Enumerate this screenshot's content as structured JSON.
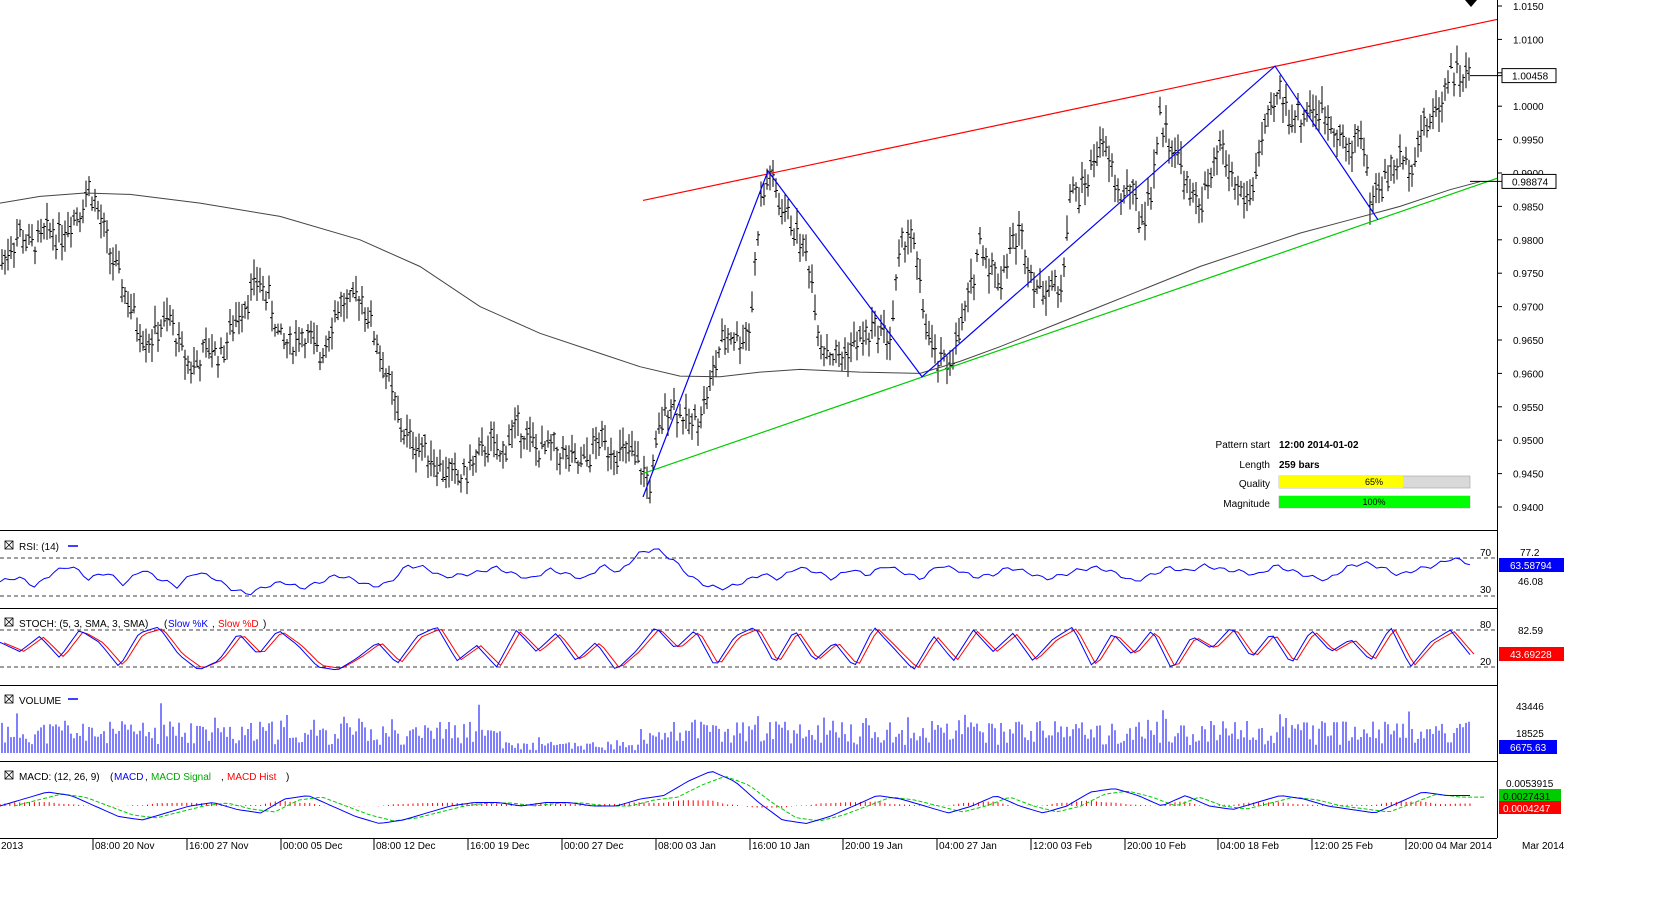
{
  "chart_data": [
    {
      "type": "candlestick",
      "panel": "price",
      "ylim": [
        0.938,
        1.015
      ],
      "y_ticks": [
        "1.0150",
        "1.0100",
        "1.0050",
        "1.0000",
        "0.9950",
        "0.9900",
        "0.9850",
        "0.9800",
        "0.9750",
        "0.9700",
        "0.9650",
        "0.9600",
        "0.9550",
        "0.9500",
        "0.9450",
        "0.9400"
      ],
      "series": [
        {
          "name": "Close",
          "x": [
            0,
            10,
            20,
            30,
            40,
            50,
            60,
            70,
            80,
            90,
            100,
            110,
            120,
            130,
            140,
            150,
            160,
            170,
            180,
            190,
            200,
            210,
            220,
            230,
            240,
            250,
            259,
            270,
            280,
            290,
            300,
            310,
            320,
            330,
            340,
            350,
            360,
            370,
            380,
            390,
            400,
            410,
            420,
            430,
            440,
            450,
            460,
            470,
            480,
            490,
            500,
            510,
            520,
            530,
            540,
            550,
            560,
            570,
            580,
            590,
            600,
            610,
            620,
            630,
            640,
            650,
            660,
            670,
            680,
            690,
            700,
            710,
            720,
            730,
            740,
            750,
            760,
            770,
            780,
            790,
            800,
            810,
            820,
            830,
            840,
            850,
            860,
            870,
            880,
            890,
            900,
            910,
            920,
            930,
            940,
            950,
            960,
            970,
            980,
            990,
            1000,
            1010,
            1020,
            1030,
            1040,
            1050,
            1060,
            1070,
            1080,
            1090,
            1100,
            1110,
            1120,
            1130,
            1140,
            1150,
            1160,
            1170,
            1180,
            1190,
            1200,
            1210,
            1220,
            1230,
            1240,
            1250,
            1260,
            1270,
            1280,
            1290,
            1300,
            1310,
            1320,
            1330,
            1340,
            1350,
            1360,
            1370,
            1380,
            1390,
            1400,
            1410,
            1420,
            1430,
            1440,
            1450,
            1460,
            1470
          ],
          "y": [
            0.976,
            0.979,
            0.981,
            0.979,
            0.98,
            0.9815,
            0.9805,
            0.983,
            0.9845,
            0.988,
            0.983,
            0.978,
            0.974,
            0.97,
            0.9665,
            0.965,
            0.967,
            0.968,
            0.964,
            0.961,
            0.962,
            0.964,
            0.9625,
            0.966,
            0.9695,
            0.972,
            0.974,
            0.9705,
            0.965,
            0.964,
            0.966,
            0.965,
            0.9625,
            0.967,
            0.9705,
            0.97,
            0.972,
            0.968,
            0.963,
            0.958,
            0.952,
            0.95,
            0.949,
            0.948,
            0.946,
            0.945,
            0.944,
            0.946,
            0.9475,
            0.95,
            0.947,
            0.951,
            0.952,
            0.95,
            0.948,
            0.949,
            0.948,
            0.947,
            0.946,
            0.948,
            0.95,
            0.949,
            0.948,
            0.948,
            0.946,
            0.943,
            0.952,
            0.956,
            0.954,
            0.952,
            0.954,
            0.958,
            0.964,
            0.966,
            0.965,
            0.967,
            0.985,
            0.99,
            0.985,
            0.983,
            0.98,
            0.976,
            0.965,
            0.963,
            0.962,
            0.964,
            0.965,
            0.966,
            0.967,
            0.965,
            0.978,
            0.982,
            0.973,
            0.964,
            0.961,
            0.962,
            0.966,
            0.972,
            0.98,
            0.976,
            0.974,
            0.979,
            0.981,
            0.976,
            0.972,
            0.974,
            0.971,
            0.987,
            0.987,
            0.99,
            0.995,
            0.991,
            0.986,
            0.988,
            0.983,
            0.986,
            0.998,
            0.995,
            0.992,
            0.986,
            0.986,
            0.988,
            0.994,
            0.99,
            0.987,
            0.986,
            0.994,
            0.998,
            1.002,
            0.999,
            0.998,
            1.0,
            0.999,
            0.998,
            0.996,
            0.992,
            0.998,
            0.986,
            0.988,
            0.99,
            0.992,
            0.991,
            0.996,
            0.998,
            1.0,
            1.006,
            1.0045,
            1.0046
          ]
        },
        {
          "name": "MA",
          "x": [
            0,
            40,
            85,
            130,
            200,
            280,
            360,
            420,
            480,
            540,
            600,
            640,
            680,
            720,
            760,
            800,
            860,
            920,
            960,
            1000,
            1050,
            1100,
            1150,
            1200,
            1250,
            1300,
            1350,
            1400,
            1450,
            1480
          ],
          "y": [
            0.9855,
            0.9865,
            0.987,
            0.9868,
            0.9855,
            0.9835,
            0.98,
            0.976,
            0.97,
            0.966,
            0.963,
            0.961,
            0.9596,
            0.9595,
            0.9602,
            0.9606,
            0.9602,
            0.96,
            0.9618,
            0.964,
            0.967,
            0.97,
            0.973,
            0.976,
            0.9785,
            0.981,
            0.983,
            0.985,
            0.9875,
            0.9887
          ]
        }
      ],
      "lines": [
        {
          "name": "resistance",
          "x": [
            643,
            1497
          ],
          "y": [
            0.9859,
            1.013
          ],
          "color": "#ff0000"
        },
        {
          "name": "support",
          "x": [
            643,
            1497
          ],
          "y": [
            0.945,
            0.9892
          ],
          "color": "#00cc00"
        },
        {
          "name": "pattern",
          "x": [
            643,
            768,
            922,
            1275,
            1378
          ],
          "y": [
            0.9415,
            0.9903,
            0.9595,
            1.006,
            0.983
          ],
          "color": "#0000ff"
        }
      ],
      "price_labels": [
        {
          "text": "1.00458",
          "value": 1.00458,
          "bg": "#ffffff"
        },
        {
          "text": "0.98874",
          "value": 0.98874,
          "bg": "#ffffff"
        }
      ]
    },
    {
      "type": "line",
      "panel": "rsi",
      "title": "RSI: (14)",
      "levels": [
        "70",
        "30"
      ],
      "axis_labels": [
        "77.2",
        "46.08"
      ],
      "value_label": "63.58794",
      "values": [
        45,
        50,
        40,
        55,
        62,
        48,
        55,
        42,
        58,
        48,
        40,
        55,
        50,
        38,
        32,
        40,
        45,
        38,
        44,
        52,
        47,
        40,
        44,
        62,
        60,
        50,
        52,
        55,
        60,
        53,
        48,
        58,
        53,
        48,
        62,
        55,
        74,
        80,
        68,
        50,
        40,
        38,
        45,
        53,
        48,
        60,
        56,
        48,
        58,
        52,
        62,
        55,
        48,
        62,
        58,
        50,
        52,
        60,
        55,
        48,
        52,
        58,
        60,
        54,
        45,
        52,
        60,
        56,
        62,
        58,
        56,
        52,
        62,
        56,
        50,
        47,
        60,
        65,
        60,
        52,
        58,
        62,
        70,
        64
      ]
    },
    {
      "type": "line",
      "panel": "stoch",
      "title": "STOCH: (5, 3, SMA, 3, SMA)",
      "legend": [
        "Slow %K",
        "Slow %D"
      ],
      "levels": [
        "80",
        "20"
      ],
      "axis_labels": [
        "82.59"
      ],
      "value_label": "43.69228",
      "values": [
        60,
        45,
        70,
        35,
        80,
        60,
        20,
        75,
        85,
        40,
        15,
        30,
        75,
        40,
        80,
        55,
        20,
        15,
        35,
        60,
        25,
        70,
        85,
        30,
        55,
        20,
        80,
        45,
        75,
        30,
        60,
        15,
        45,
        85,
        50,
        80,
        20,
        70,
        85,
        25,
        80,
        30,
        60,
        20,
        85,
        50,
        15,
        70,
        30,
        80,
        45,
        75,
        30,
        65,
        85,
        20,
        75,
        40,
        80,
        15,
        70,
        50,
        85,
        35,
        75,
        25,
        80,
        45,
        65,
        30,
        85,
        20,
        60,
        80,
        40
      ]
    },
    {
      "type": "bar",
      "panel": "volume",
      "title": "VOLUME",
      "axis_labels": [
        "43446",
        "18525"
      ],
      "value_label": "6675.63"
    },
    {
      "type": "line",
      "panel": "macd",
      "title": "MACD: (12, 26, 9)",
      "legend": [
        "MACD",
        "MACD Signal",
        "MACD Hist"
      ],
      "axis_labels": [
        "0.0053915"
      ],
      "value_labels": [
        "0.0027431",
        "0.0004247"
      ],
      "macd_values": [
        0.0,
        0.002,
        0.004,
        0.003,
        0.0,
        -0.003,
        -0.004,
        -0.002,
        0.0,
        0.001,
        -0.001,
        -0.002,
        0.002,
        0.003,
        0.0,
        -0.003,
        -0.005,
        -0.004,
        -0.002,
        0.0,
        0.001,
        0.001,
        0.0,
        0.001,
        0.001,
        0.0,
        0.0,
        0.002,
        0.003,
        0.007,
        0.01,
        0.007,
        0.001,
        -0.004,
        -0.005,
        -0.003,
        0.0,
        0.003,
        0.002,
        0.0,
        -0.002,
        0.0,
        0.003,
        0.0,
        -0.002,
        0.0,
        0.004,
        0.005,
        0.003,
        0.0,
        0.003,
        0.0,
        -0.001,
        0.001,
        0.003,
        0.002,
        0.0,
        -0.001,
        -0.002,
        0.001,
        0.004,
        0.003,
        0.003
      ]
    }
  ],
  "info": {
    "pattern_start_label": "Pattern start",
    "pattern_start_value": "12:00 2014-01-02",
    "length_label": "Length",
    "length_value": "259 bars",
    "quality_label": "Quality",
    "quality_value": "65%",
    "quality_fraction": 0.65,
    "quality_color": "#ffff00",
    "magnitude_label": "Magnitude",
    "magnitude_value": "100%",
    "magnitude_fraction": 1.0,
    "magnitude_color": "#00ff00"
  },
  "x_axis_labels": [
    "2013",
    "08:00 20 Nov",
    "16:00 27 Nov",
    "00:00 05 Dec",
    "08:00 12 Dec",
    "16:00 19 Dec",
    "00:00 27 Dec",
    "08:00 03 Jan",
    "16:00 10 Jan",
    "20:00 19 Jan",
    "04:00 27 Jan",
    "12:00 03 Feb",
    "20:00 10 Feb",
    "04:00 18 Feb",
    "12:00 25 Feb",
    "20:00 04 Mar 2014",
    "Mar 2014"
  ]
}
